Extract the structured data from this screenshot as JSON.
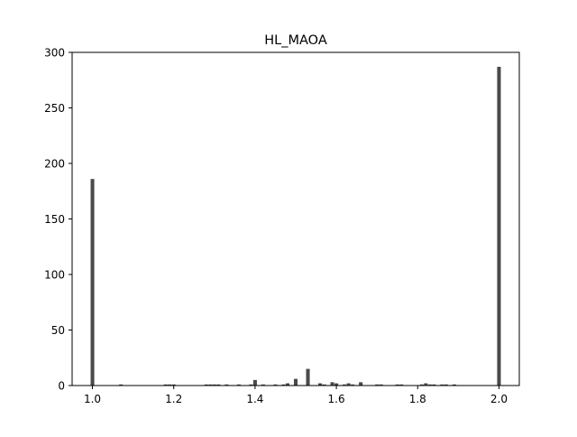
{
  "chart_data": {
    "type": "bar",
    "title": "HL_MAOA",
    "xlabel": "",
    "ylabel": "",
    "xlim": [
      0.95,
      2.05
    ],
    "ylim": [
      0,
      300
    ],
    "grid": false,
    "bar_color": "#4a4a4a",
    "bin_width": 0.01,
    "x_ticks": [
      "1.0",
      "1.2",
      "1.4",
      "1.6",
      "1.8",
      "2.0"
    ],
    "y_ticks": [
      "0",
      "50",
      "100",
      "150",
      "200",
      "250",
      "300"
    ],
    "x": [
      1.0,
      1.07,
      1.18,
      1.19,
      1.2,
      1.28,
      1.29,
      1.3,
      1.31,
      1.33,
      1.36,
      1.39,
      1.4,
      1.42,
      1.45,
      1.47,
      1.48,
      1.5,
      1.53,
      1.56,
      1.57,
      1.59,
      1.6,
      1.62,
      1.63,
      1.64,
      1.66,
      1.7,
      1.71,
      1.75,
      1.76,
      1.81,
      1.82,
      1.83,
      1.84,
      1.86,
      1.87,
      1.89,
      2.0
    ],
    "values": [
      186,
      1,
      1,
      1,
      1,
      1,
      1,
      1,
      1,
      1,
      1,
      1,
      5,
      1,
      1,
      1,
      2,
      6,
      15,
      2,
      1,
      3,
      2,
      1,
      2,
      1,
      3,
      1,
      1,
      1,
      1,
      1,
      2,
      1,
      1,
      1,
      1,
      1,
      287
    ]
  }
}
